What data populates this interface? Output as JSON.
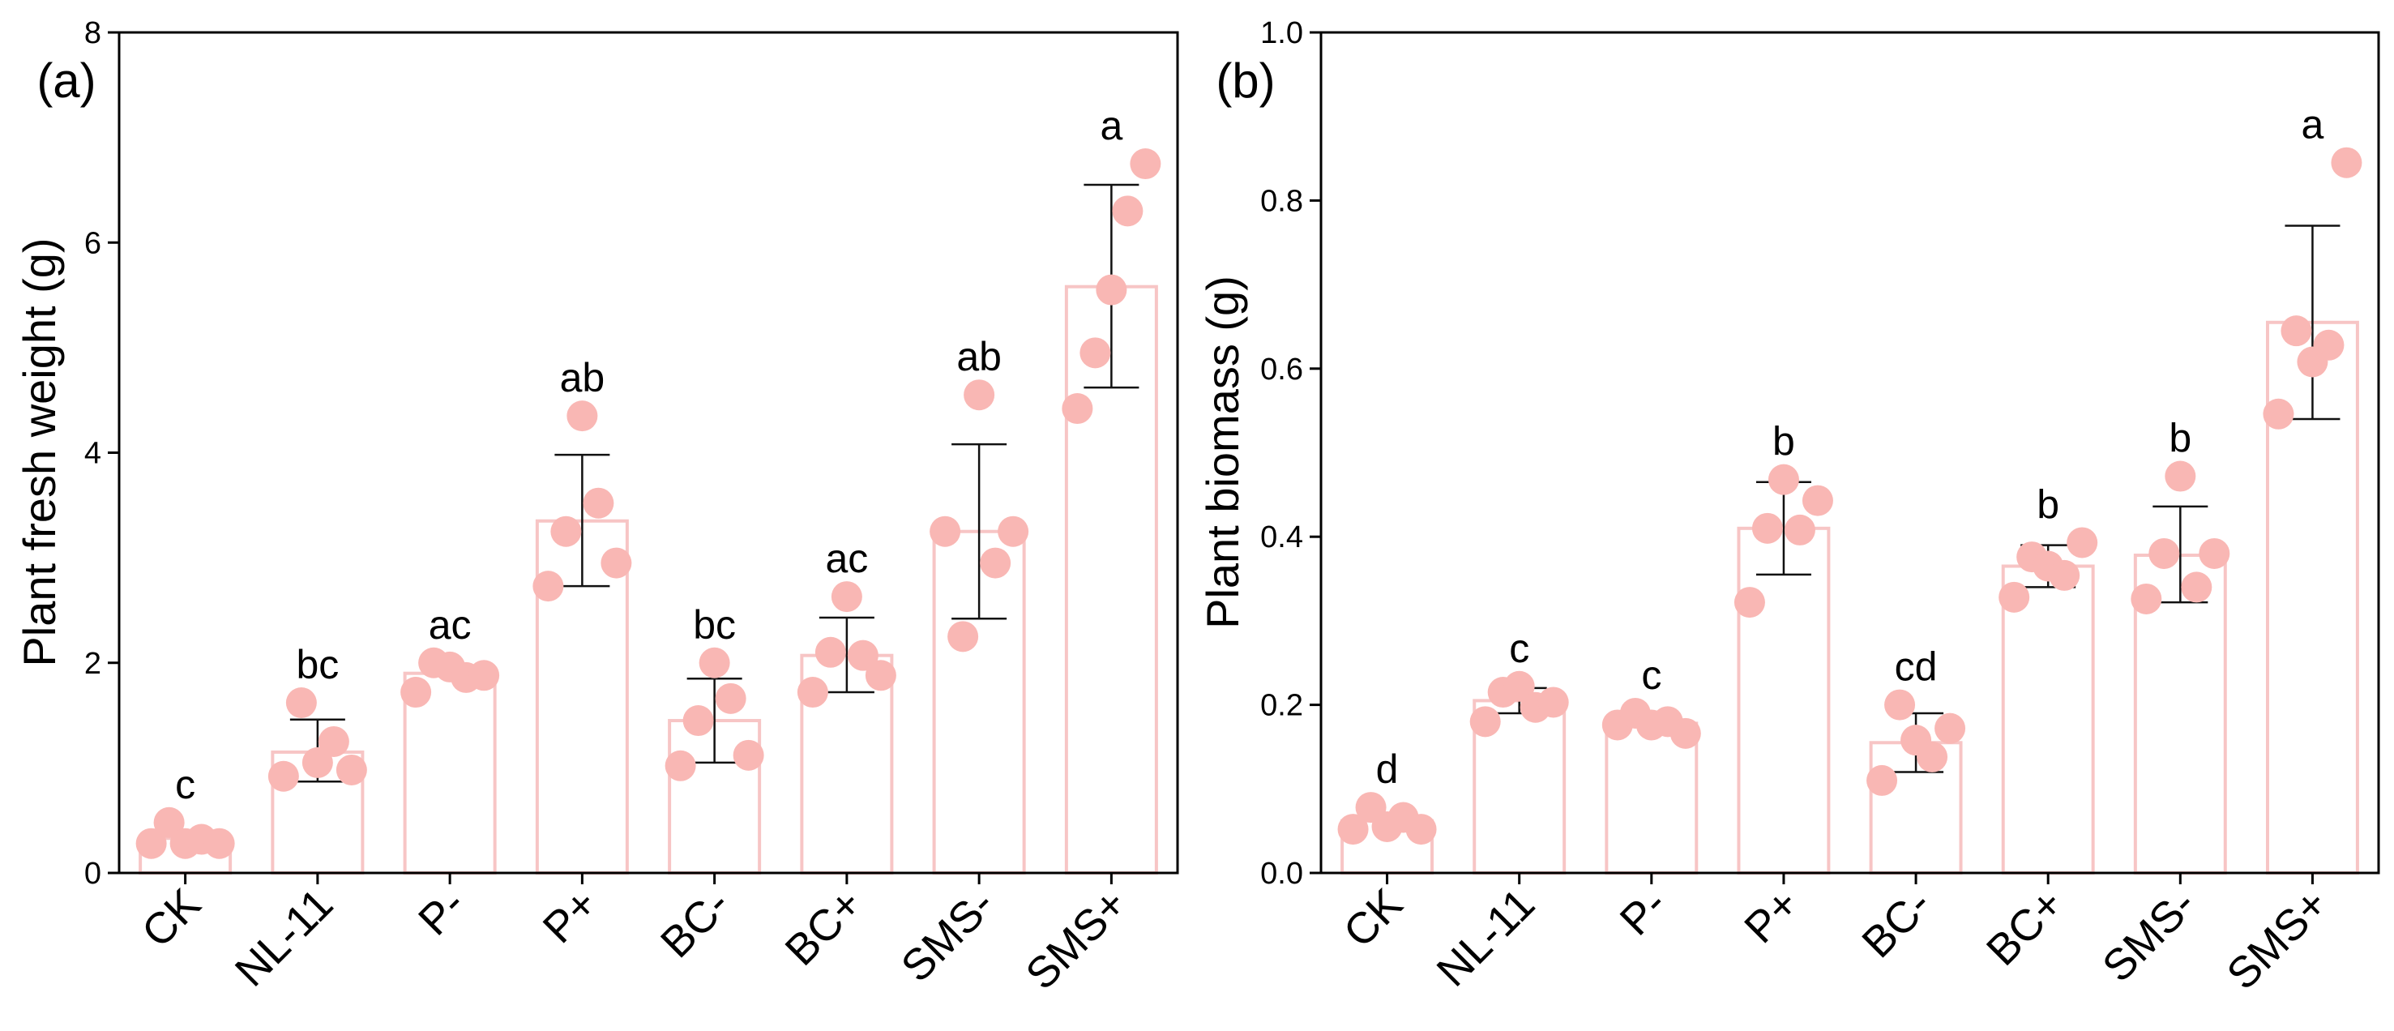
{
  "style": {
    "bar_stroke": "#f7c5c5",
    "point_fill": "#f9b7b4",
    "axis_color": "#000000",
    "error_color": "#111111"
  },
  "chart_data": [
    {
      "type": "bar",
      "panel_label": "(a)",
      "title": "",
      "xlabel": "",
      "ylabel": "Plant fresh weight (g)",
      "ylim": [
        0,
        8
      ],
      "yticks": [
        "0",
        "2",
        "4",
        "6",
        "8"
      ],
      "categories": [
        "CK",
        "NL-11",
        "P-",
        "P+",
        "BC-",
        "BC+",
        "SMS-",
        "SMS+"
      ],
      "values": [
        0.33,
        1.15,
        1.9,
        3.35,
        1.45,
        2.07,
        3.25,
        5.58
      ],
      "error_low": [
        0.33,
        0.87,
        1.9,
        2.73,
        1.05,
        1.72,
        2.42,
        4.62
      ],
      "error_high": [
        0.33,
        1.46,
        1.9,
        3.98,
        1.85,
        2.43,
        4.08,
        6.55
      ],
      "letters": [
        "c",
        "bc",
        "ac",
        "ab",
        "bc",
        "ac",
        "ab",
        "a"
      ],
      "points": [
        [
          0.28,
          0.48,
          0.28,
          0.32,
          0.28
        ],
        [
          0.92,
          1.62,
          1.05,
          1.25,
          0.98
        ],
        [
          1.72,
          2.0,
          1.96,
          1.86,
          1.88
        ],
        [
          2.73,
          3.25,
          4.35,
          3.52,
          2.95
        ],
        [
          1.02,
          1.45,
          2.0,
          1.66,
          1.12
        ],
        [
          1.72,
          2.1,
          2.63,
          2.07,
          1.88
        ],
        [
          3.25,
          2.25,
          4.55,
          2.95,
          3.25
        ],
        [
          4.42,
          4.95,
          5.55,
          6.3,
          6.75
        ]
      ]
    },
    {
      "type": "bar",
      "panel_label": "(b)",
      "title": "",
      "xlabel": "",
      "ylabel": "Plant biomass (g)",
      "ylim": [
        0,
        1.0
      ],
      "yticks": [
        "0.0",
        "0.2",
        "0.4",
        "0.6",
        "0.8",
        "1.0"
      ],
      "categories": [
        "CK",
        "NL-11",
        "P-",
        "P+",
        "BC-",
        "BC+",
        "SMS-",
        "SMS+"
      ],
      "values": [
        0.062,
        0.205,
        0.178,
        0.41,
        0.155,
        0.365,
        0.378,
        0.655
      ],
      "error_low": [
        0.062,
        0.19,
        0.178,
        0.355,
        0.12,
        0.34,
        0.322,
        0.54
      ],
      "error_high": [
        0.062,
        0.22,
        0.178,
        0.465,
        0.19,
        0.39,
        0.436,
        0.77
      ],
      "letters": [
        "d",
        "c",
        "c",
        "b",
        "cd",
        "b",
        "b",
        "a"
      ],
      "points": [
        [
          0.052,
          0.078,
          0.055,
          0.066,
          0.052
        ],
        [
          0.18,
          0.215,
          0.222,
          0.197,
          0.203
        ],
        [
          0.176,
          0.19,
          0.176,
          0.18,
          0.166
        ],
        [
          0.322,
          0.41,
          0.468,
          0.408,
          0.443
        ],
        [
          0.11,
          0.2,
          0.158,
          0.138,
          0.172
        ],
        [
          0.328,
          0.376,
          0.365,
          0.354,
          0.393
        ],
        [
          0.326,
          0.38,
          0.472,
          0.34,
          0.38
        ],
        [
          0.546,
          0.645,
          0.608,
          0.628,
          0.845
        ]
      ]
    }
  ]
}
